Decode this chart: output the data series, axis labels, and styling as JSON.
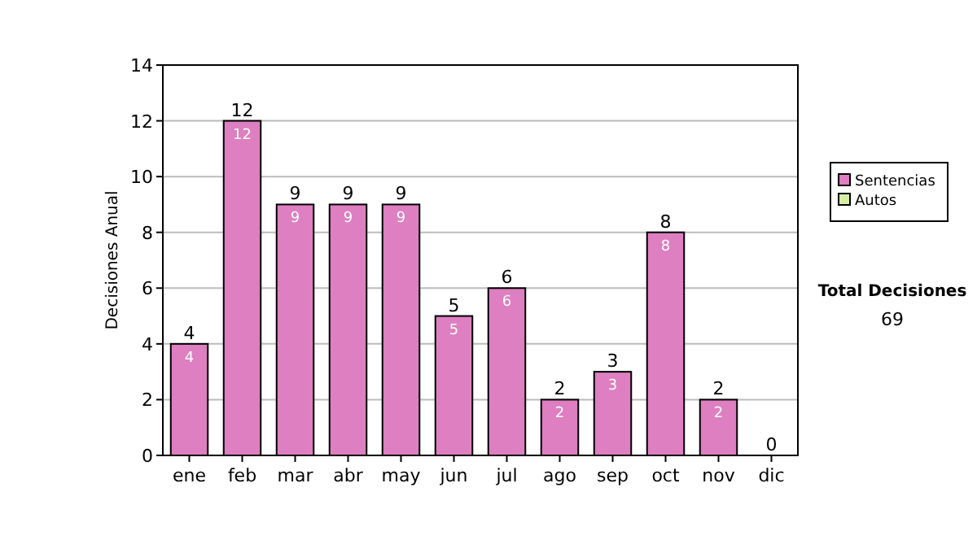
{
  "chart_data": {
    "type": "bar",
    "stacked": true,
    "ylabel": "Decisiones Anual",
    "categories": [
      "ene",
      "feb",
      "mar",
      "abr",
      "may",
      "jun",
      "jul",
      "ago",
      "sep",
      "oct",
      "nov",
      "dic"
    ],
    "series": [
      {
        "name": "Sentencias",
        "color": "#dd7fc0",
        "values": [
          4,
          12,
          9,
          9,
          9,
          5,
          6,
          2,
          3,
          8,
          2,
          0
        ],
        "value_labels": [
          "4",
          "12",
          "9",
          "9",
          "9",
          "5",
          "6",
          "2",
          "3",
          "8",
          "2",
          null
        ]
      },
      {
        "name": "Autos",
        "color": "#d6eda4",
        "values": [
          0,
          0,
          0,
          0,
          0,
          0,
          0,
          0,
          0,
          0,
          0,
          0
        ]
      }
    ],
    "totals": [
      "4",
      "12",
      "9",
      "9",
      "9",
      "5",
      "6",
      "2",
      "3",
      "8",
      "2",
      "0"
    ],
    "ylim": [
      0,
      14
    ],
    "yticks": [
      0,
      2,
      4,
      6,
      8,
      10,
      12,
      14
    ],
    "grid": "y",
    "legend": "right",
    "annotations": [
      "Total Decisiones",
      "69"
    ]
  }
}
